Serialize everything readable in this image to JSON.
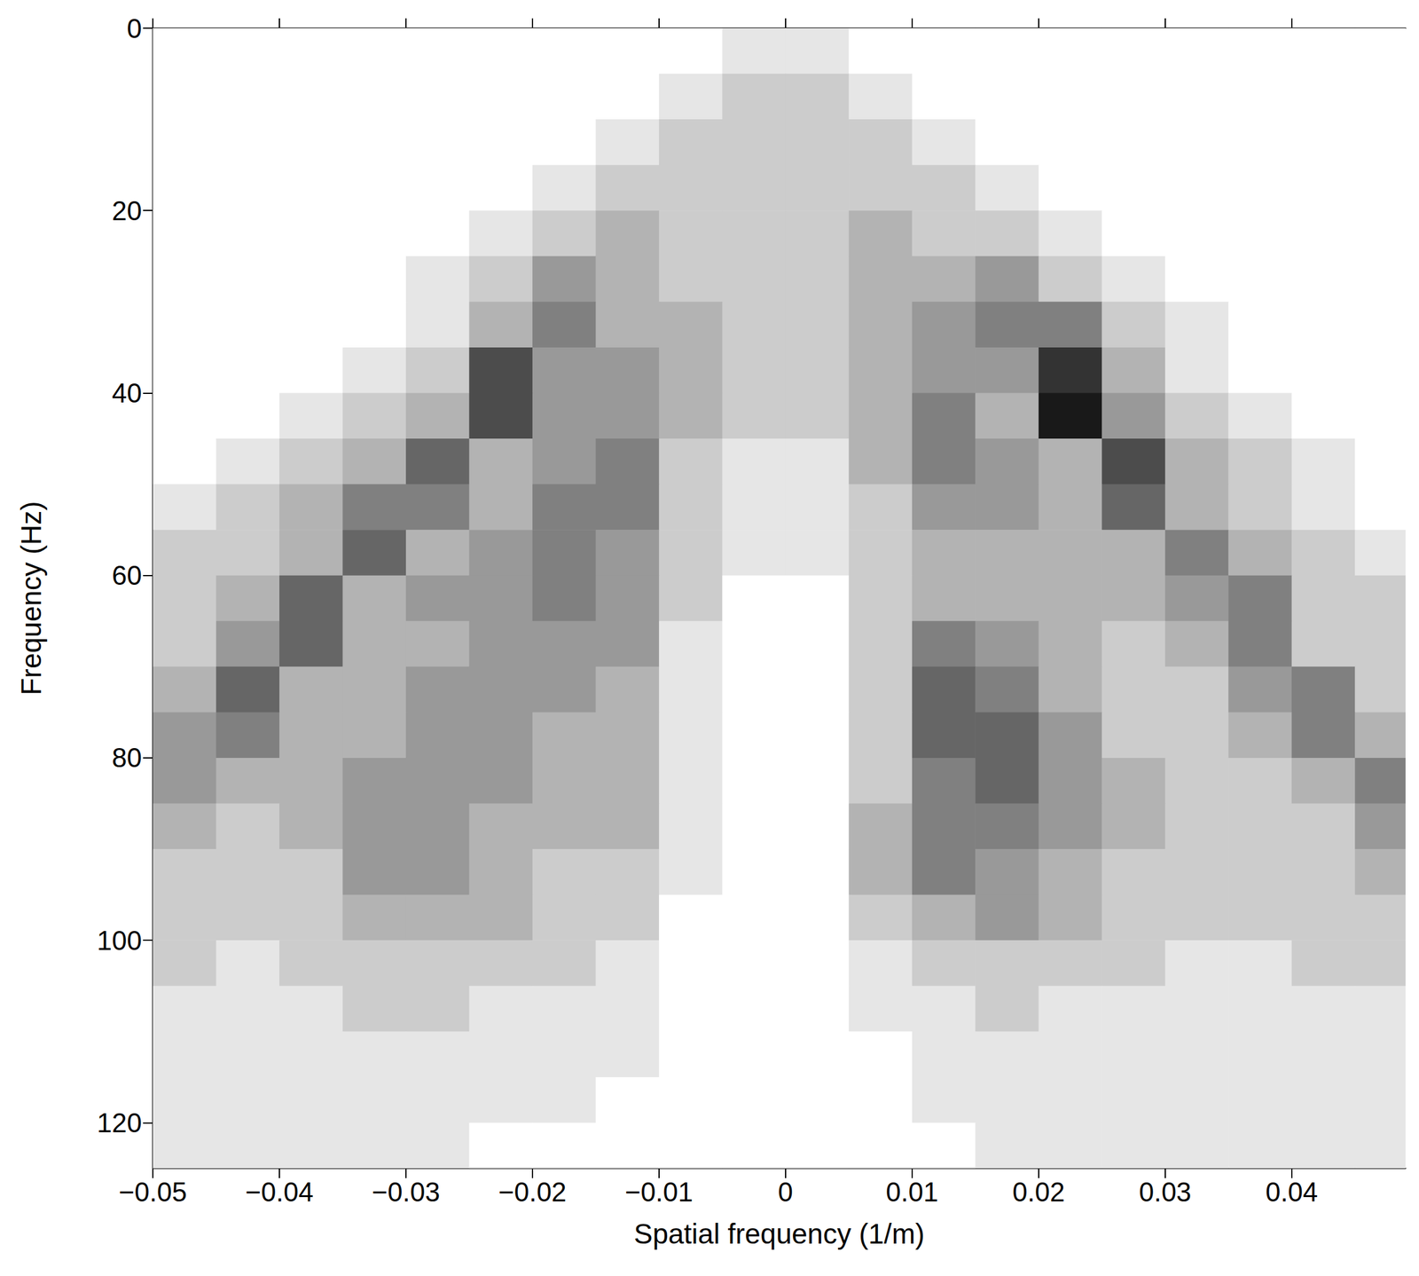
{
  "chart_data": {
    "type": "heatmap",
    "x_label": "Spatial frequency (1/m)",
    "y_label": "Frequency (Hz)",
    "xlim": [
      -0.05,
      0.049
    ],
    "ylim": [
      0,
      125
    ],
    "xticks": [
      {
        "value": -0.05,
        "label": "−0.05"
      },
      {
        "value": -0.04,
        "label": "−0.04"
      },
      {
        "value": -0.03,
        "label": "−0.03"
      },
      {
        "value": -0.02,
        "label": "−0.02"
      },
      {
        "value": -0.01,
        "label": "−0.01"
      },
      0,
      0.01,
      0.02,
      0.03,
      0.04
    ],
    "yticks": [
      0,
      20,
      40,
      60,
      80,
      100,
      120
    ],
    "grid": false,
    "color": "#000000",
    "x_bins": [
      -0.05,
      -0.045,
      -0.04,
      -0.035,
      -0.03,
      -0.025,
      -0.02,
      -0.015,
      -0.01,
      -0.005,
      0,
      0.005,
      0.01,
      0.015,
      0.02,
      0.025,
      0.03,
      0.035,
      0.04,
      0.045,
      0.05
    ],
    "y_bins": [
      0,
      5,
      10,
      15,
      20,
      25,
      30,
      35,
      40,
      45,
      50,
      55,
      60,
      65,
      70,
      75,
      80,
      85,
      90,
      95,
      100,
      105,
      110,
      115,
      120,
      125
    ],
    "cells": [
      [
        0,
        0,
        0,
        0,
        0,
        0,
        0,
        0,
        0,
        1,
        1,
        0,
        0,
        0,
        0,
        0,
        0,
        0,
        0,
        0
      ],
      [
        0,
        0,
        0,
        0,
        0,
        0,
        0,
        0,
        1,
        2,
        2,
        1,
        0,
        0,
        0,
        0,
        0,
        0,
        0,
        0
      ],
      [
        0,
        0,
        0,
        0,
        0,
        0,
        0,
        1,
        2,
        2,
        2,
        2,
        1,
        0,
        0,
        0,
        0,
        0,
        0,
        0
      ],
      [
        0,
        0,
        0,
        0,
        0,
        0,
        1,
        2,
        2,
        2,
        2,
        2,
        2,
        1,
        0,
        0,
        0,
        0,
        0,
        0
      ],
      [
        0,
        0,
        0,
        0,
        0,
        1,
        2,
        3,
        2,
        2,
        2,
        3,
        2,
        2,
        1,
        0,
        0,
        0,
        0,
        0
      ],
      [
        0,
        0,
        0,
        0,
        1,
        2,
        4,
        3,
        2,
        2,
        2,
        3,
        3,
        4,
        2,
        1,
        0,
        0,
        0,
        0
      ],
      [
        0,
        0,
        0,
        0,
        1,
        3,
        5,
        3,
        3,
        2,
        2,
        3,
        4,
        5,
        5,
        2,
        1,
        0,
        0,
        0
      ],
      [
        0,
        0,
        0,
        1,
        2,
        7,
        4,
        4,
        3,
        2,
        2,
        3,
        4,
        4,
        8,
        3,
        1,
        0,
        0,
        0
      ],
      [
        0,
        0,
        1,
        2,
        3,
        7,
        4,
        4,
        3,
        2,
        2,
        3,
        5,
        3,
        9,
        4,
        2,
        1,
        0,
        0
      ],
      [
        0,
        1,
        2,
        3,
        6,
        3,
        4,
        5,
        2,
        1,
        1,
        3,
        5,
        4,
        3,
        7,
        3,
        2,
        1,
        0
      ],
      [
        1,
        2,
        3,
        5,
        5,
        3,
        5,
        5,
        2,
        1,
        1,
        2,
        4,
        4,
        3,
        6,
        3,
        2,
        1,
        0
      ],
      [
        2,
        2,
        3,
        6,
        3,
        4,
        5,
        4,
        2,
        1,
        1,
        2,
        3,
        3,
        3,
        3,
        5,
        3,
        2,
        1
      ],
      [
        2,
        3,
        6,
        3,
        4,
        4,
        5,
        4,
        2,
        0,
        0,
        2,
        3,
        3,
        3,
        3,
        4,
        5,
        2,
        2
      ],
      [
        2,
        4,
        6,
        3,
        3,
        4,
        4,
        4,
        1,
        0,
        0,
        2,
        5,
        4,
        3,
        2,
        3,
        5,
        2,
        2
      ],
      [
        3,
        6,
        3,
        3,
        4,
        4,
        4,
        3,
        1,
        0,
        0,
        2,
        6,
        5,
        3,
        2,
        2,
        4,
        5,
        2
      ],
      [
        4,
        5,
        3,
        3,
        4,
        4,
        3,
        3,
        1,
        0,
        0,
        2,
        6,
        6,
        4,
        2,
        2,
        3,
        5,
        3
      ],
      [
        4,
        3,
        3,
        4,
        4,
        4,
        3,
        3,
        1,
        0,
        0,
        2,
        5,
        6,
        4,
        3,
        2,
        2,
        3,
        5
      ],
      [
        3,
        2,
        3,
        4,
        4,
        3,
        3,
        3,
        1,
        0,
        0,
        3,
        5,
        5,
        4,
        3,
        2,
        2,
        2,
        4
      ],
      [
        2,
        2,
        2,
        4,
        4,
        3,
        2,
        2,
        1,
        0,
        0,
        3,
        5,
        4,
        3,
        2,
        2,
        2,
        2,
        3
      ],
      [
        2,
        2,
        2,
        3,
        3,
        3,
        2,
        2,
        0,
        0,
        0,
        2,
        3,
        4,
        3,
        2,
        2,
        2,
        2,
        2
      ],
      [
        2,
        1,
        2,
        2,
        2,
        2,
        2,
        1,
        0,
        0,
        0,
        1,
        2,
        2,
        2,
        2,
        1,
        1,
        2,
        2
      ],
      [
        1,
        1,
        1,
        2,
        2,
        1,
        1,
        1,
        0,
        0,
        0,
        1,
        1,
        2,
        1,
        1,
        1,
        1,
        1,
        1
      ],
      [
        1,
        1,
        1,
        1,
        1,
        1,
        1,
        1,
        0,
        0,
        0,
        0,
        1,
        1,
        1,
        1,
        1,
        1,
        1,
        1
      ],
      [
        1,
        1,
        1,
        1,
        1,
        1,
        1,
        0,
        0,
        0,
        0,
        0,
        1,
        1,
        1,
        1,
        1,
        1,
        1,
        1
      ],
      [
        1,
        1,
        1,
        1,
        1,
        0,
        0,
        0,
        0,
        0,
        0,
        0,
        0,
        1,
        1,
        1,
        1,
        1,
        1,
        1
      ]
    ]
  }
}
